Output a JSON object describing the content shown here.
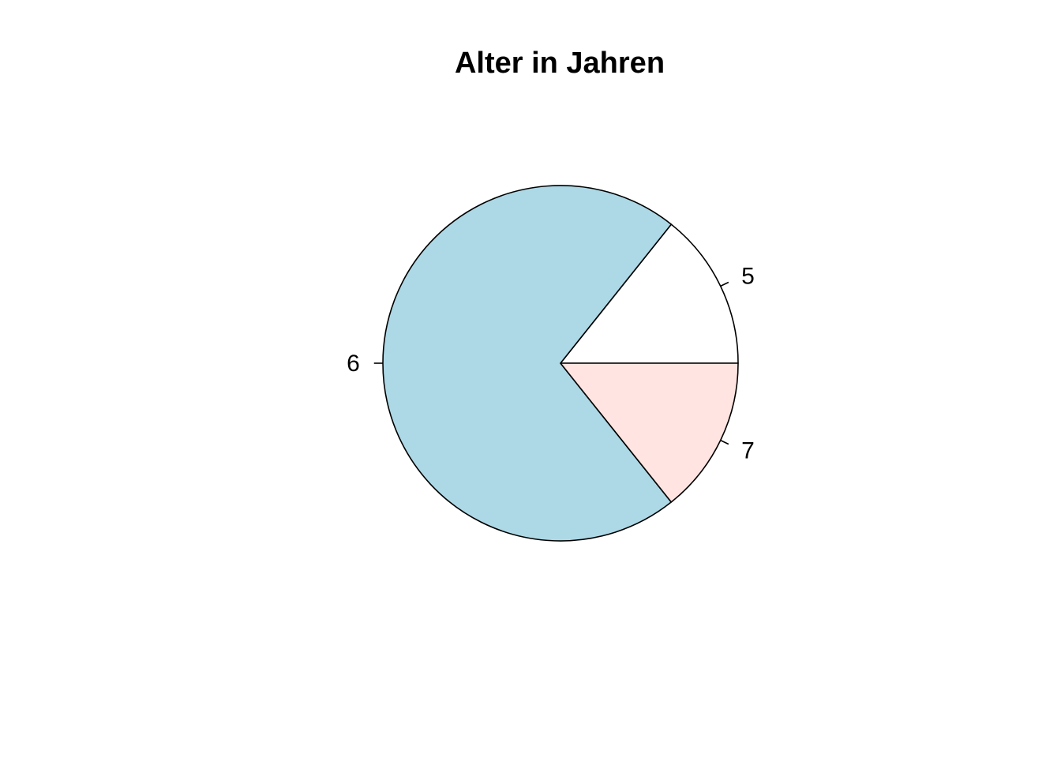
{
  "chart_data": {
    "type": "pie",
    "title": "Alter in Jahren",
    "start_angle_deg": 0,
    "direction": "counterclockwise",
    "slices": [
      {
        "label": "5",
        "value": 2,
        "color": "#ffffff"
      },
      {
        "label": "6",
        "value": 10,
        "color": "#add8e6"
      },
      {
        "label": "7",
        "value": 2,
        "color": "#ffe4e1"
      }
    ]
  }
}
